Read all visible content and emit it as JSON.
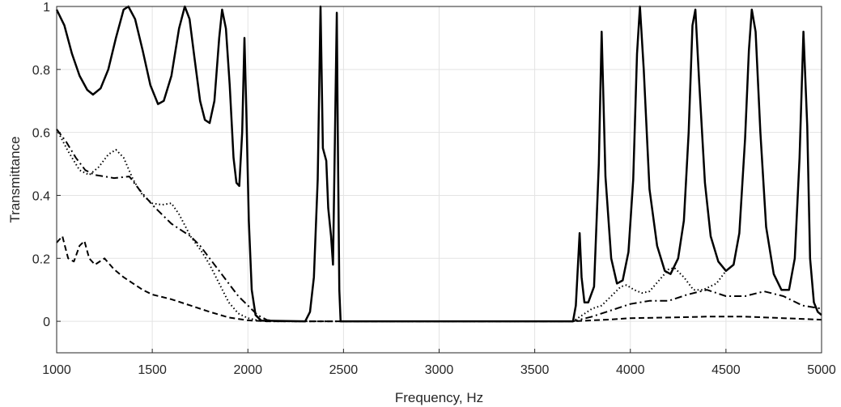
{
  "chart_data": {
    "type": "line",
    "xlabel": "Frequency, Hz",
    "ylabel": "Transmittance",
    "xlim": [
      1000,
      5000
    ],
    "ylim": [
      -0.1,
      1.0
    ],
    "grid": true,
    "legend": "none",
    "x_ticks": [
      "1000",
      "1500",
      "2000",
      "2500",
      "3000",
      "3500",
      "4000",
      "4500",
      "5000"
    ],
    "y_ticks": [
      "0",
      "0.2",
      "0.4",
      "0.6",
      "0.8",
      "1"
    ],
    "series": [
      {
        "style": "solid",
        "points": [
          [
            1000,
            0.99
          ],
          [
            1040,
            0.94
          ],
          [
            1080,
            0.85
          ],
          [
            1120,
            0.78
          ],
          [
            1160,
            0.735
          ],
          [
            1190,
            0.72
          ],
          [
            1230,
            0.74
          ],
          [
            1270,
            0.8
          ],
          [
            1310,
            0.9
          ],
          [
            1350,
            0.99
          ],
          [
            1375,
            1.0
          ],
          [
            1410,
            0.96
          ],
          [
            1450,
            0.86
          ],
          [
            1490,
            0.75
          ],
          [
            1530,
            0.69
          ],
          [
            1560,
            0.7
          ],
          [
            1600,
            0.78
          ],
          [
            1640,
            0.93
          ],
          [
            1670,
            1.0
          ],
          [
            1695,
            0.96
          ],
          [
            1720,
            0.84
          ],
          [
            1750,
            0.7
          ],
          [
            1775,
            0.64
          ],
          [
            1800,
            0.63
          ],
          [
            1825,
            0.7
          ],
          [
            1850,
            0.9
          ],
          [
            1865,
            0.99
          ],
          [
            1885,
            0.93
          ],
          [
            1905,
            0.75
          ],
          [
            1925,
            0.52
          ],
          [
            1940,
            0.44
          ],
          [
            1955,
            0.43
          ],
          [
            1970,
            0.6
          ],
          [
            1982,
            0.9
          ],
          [
            1992,
            0.66
          ],
          [
            2005,
            0.32
          ],
          [
            2020,
            0.1
          ],
          [
            2040,
            0.02
          ],
          [
            2070,
            0.002
          ],
          [
            2300,
            0.0
          ],
          [
            2325,
            0.03
          ],
          [
            2345,
            0.14
          ],
          [
            2365,
            0.45
          ],
          [
            2380,
            1.0
          ],
          [
            2392,
            0.55
          ],
          [
            2410,
            0.51
          ],
          [
            2420,
            0.36
          ],
          [
            2435,
            0.27
          ],
          [
            2445,
            0.18
          ],
          [
            2455,
            0.57
          ],
          [
            2465,
            0.98
          ],
          [
            2470,
            0.6
          ],
          [
            2478,
            0.1
          ],
          [
            2485,
            0.0
          ],
          [
            3700,
            0.0
          ],
          [
            3715,
            0.05
          ],
          [
            3735,
            0.28
          ],
          [
            3745,
            0.14
          ],
          [
            3760,
            0.06
          ],
          [
            3780,
            0.06
          ],
          [
            3810,
            0.11
          ],
          [
            3835,
            0.5
          ],
          [
            3850,
            0.92
          ],
          [
            3870,
            0.46
          ],
          [
            3900,
            0.2
          ],
          [
            3930,
            0.12
          ],
          [
            3960,
            0.13
          ],
          [
            3990,
            0.22
          ],
          [
            4015,
            0.45
          ],
          [
            4035,
            0.85
          ],
          [
            4050,
            1.0
          ],
          [
            4070,
            0.8
          ],
          [
            4100,
            0.42
          ],
          [
            4140,
            0.24
          ],
          [
            4180,
            0.16
          ],
          [
            4210,
            0.15
          ],
          [
            4250,
            0.2
          ],
          [
            4280,
            0.32
          ],
          [
            4305,
            0.6
          ],
          [
            4325,
            0.94
          ],
          [
            4340,
            0.99
          ],
          [
            4360,
            0.76
          ],
          [
            4390,
            0.44
          ],
          [
            4420,
            0.27
          ],
          [
            4460,
            0.19
          ],
          [
            4500,
            0.16
          ],
          [
            4540,
            0.18
          ],
          [
            4570,
            0.28
          ],
          [
            4600,
            0.58
          ],
          [
            4620,
            0.86
          ],
          [
            4635,
            0.99
          ],
          [
            4655,
            0.92
          ],
          [
            4680,
            0.6
          ],
          [
            4710,
            0.3
          ],
          [
            4750,
            0.15
          ],
          [
            4790,
            0.1
          ],
          [
            4830,
            0.1
          ],
          [
            4860,
            0.2
          ],
          [
            4885,
            0.52
          ],
          [
            4905,
            0.92
          ],
          [
            4925,
            0.62
          ],
          [
            4940,
            0.2
          ],
          [
            4960,
            0.06
          ],
          [
            4980,
            0.03
          ],
          [
            5000,
            0.02
          ]
        ]
      },
      {
        "style": "dotted",
        "points": [
          [
            1000,
            0.61
          ],
          [
            1060,
            0.54
          ],
          [
            1120,
            0.48
          ],
          [
            1170,
            0.465
          ],
          [
            1220,
            0.49
          ],
          [
            1270,
            0.53
          ],
          [
            1310,
            0.545
          ],
          [
            1350,
            0.52
          ],
          [
            1400,
            0.45
          ],
          [
            1450,
            0.4
          ],
          [
            1500,
            0.375
          ],
          [
            1550,
            0.37
          ],
          [
            1600,
            0.375
          ],
          [
            1640,
            0.34
          ],
          [
            1700,
            0.27
          ],
          [
            1760,
            0.22
          ],
          [
            1800,
            0.18
          ],
          [
            1850,
            0.12
          ],
          [
            1900,
            0.06
          ],
          [
            1950,
            0.025
          ],
          [
            2000,
            0.01
          ],
          [
            2050,
            0.003
          ],
          [
            2100,
            0.0
          ],
          [
            3700,
            0.0
          ],
          [
            3750,
            0.02
          ],
          [
            3800,
            0.04
          ],
          [
            3850,
            0.05
          ],
          [
            3900,
            0.08
          ],
          [
            3950,
            0.11
          ],
          [
            3980,
            0.115
          ],
          [
            4020,
            0.1
          ],
          [
            4060,
            0.09
          ],
          [
            4100,
            0.095
          ],
          [
            4150,
            0.13
          ],
          [
            4200,
            0.165
          ],
          [
            4230,
            0.17
          ],
          [
            4280,
            0.14
          ],
          [
            4330,
            0.1
          ],
          [
            4380,
            0.1
          ],
          [
            4450,
            0.12
          ],
          [
            4500,
            0.16
          ]
        ]
      },
      {
        "style": "dash-dot",
        "points": [
          [
            1000,
            0.61
          ],
          [
            1050,
            0.57
          ],
          [
            1100,
            0.52
          ],
          [
            1150,
            0.48
          ],
          [
            1200,
            0.465
          ],
          [
            1250,
            0.46
          ],
          [
            1300,
            0.455
          ],
          [
            1380,
            0.46
          ],
          [
            1430,
            0.42
          ],
          [
            1500,
            0.37
          ],
          [
            1550,
            0.34
          ],
          [
            1600,
            0.31
          ],
          [
            1650,
            0.29
          ],
          [
            1700,
            0.27
          ],
          [
            1750,
            0.24
          ],
          [
            1800,
            0.2
          ],
          [
            1850,
            0.16
          ],
          [
            1900,
            0.12
          ],
          [
            1950,
            0.08
          ],
          [
            2000,
            0.05
          ],
          [
            2050,
            0.02
          ],
          [
            2100,
            0.004
          ],
          [
            2150,
            0.0
          ],
          [
            3700,
            0.0
          ],
          [
            3800,
            0.015
          ],
          [
            3900,
            0.035
          ],
          [
            4000,
            0.055
          ],
          [
            4100,
            0.065
          ],
          [
            4200,
            0.065
          ],
          [
            4300,
            0.085
          ],
          [
            4400,
            0.1
          ],
          [
            4500,
            0.08
          ],
          [
            4600,
            0.08
          ],
          [
            4700,
            0.095
          ],
          [
            4800,
            0.08
          ],
          [
            4900,
            0.05
          ],
          [
            5000,
            0.04
          ]
        ]
      },
      {
        "style": "dashed",
        "points": [
          [
            1000,
            0.25
          ],
          [
            1030,
            0.27
          ],
          [
            1060,
            0.2
          ],
          [
            1090,
            0.19
          ],
          [
            1120,
            0.24
          ],
          [
            1145,
            0.255
          ],
          [
            1170,
            0.2
          ],
          [
            1200,
            0.18
          ],
          [
            1250,
            0.2
          ],
          [
            1300,
            0.165
          ],
          [
            1350,
            0.14
          ],
          [
            1400,
            0.12
          ],
          [
            1450,
            0.1
          ],
          [
            1500,
            0.085
          ],
          [
            1600,
            0.07
          ],
          [
            1700,
            0.05
          ],
          [
            1800,
            0.03
          ],
          [
            1900,
            0.012
          ],
          [
            2000,
            0.003
          ],
          [
            2100,
            0.0
          ],
          [
            3700,
            0.0
          ],
          [
            3800,
            0.003
          ],
          [
            3900,
            0.006
          ],
          [
            4000,
            0.01
          ],
          [
            4200,
            0.012
          ],
          [
            4400,
            0.015
          ],
          [
            4600,
            0.015
          ],
          [
            4800,
            0.01
          ],
          [
            5000,
            0.005
          ]
        ]
      }
    ]
  }
}
